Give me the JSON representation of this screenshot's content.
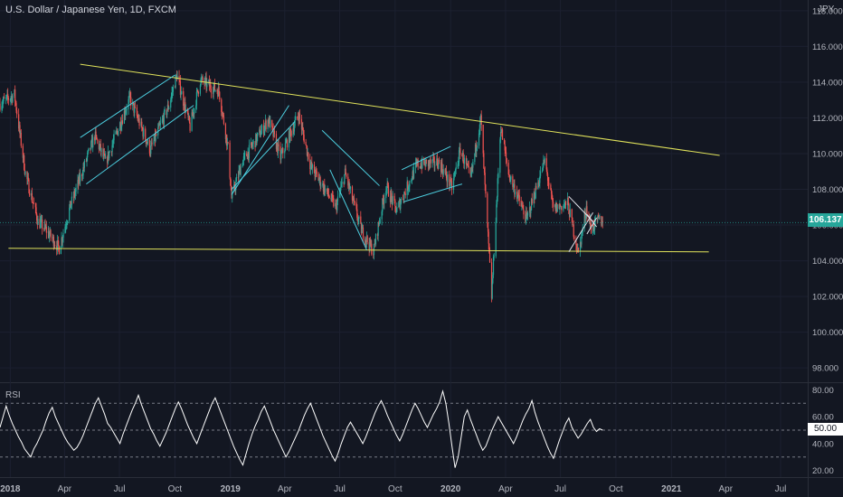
{
  "header": {
    "title": "U.S. Dollar / Japanese Yen, 1D, FXCM",
    "currency": "JPY"
  },
  "colors": {
    "background": "#131722",
    "up": "#26a69a",
    "down": "#ef5350",
    "trend_yellow": "#e1e35b",
    "channel_cyan": "#4dd0e1",
    "rsi_line": "#ffffff",
    "last_price_bg": "#26a69a"
  },
  "last_price": "106.137",
  "rsi": {
    "label": "RSI",
    "value": "50.00"
  },
  "chart_data": [
    {
      "type": "candlestick",
      "title": "U.S. Dollar / Japanese Yen, 1D, FXCM",
      "unit": "JPY",
      "x_tick_labels": [
        "2018",
        "Apr",
        "Jul",
        "Oct",
        "2019",
        "Apr",
        "Jul",
        "Oct",
        "2020",
        "Apr",
        "Jul",
        "Oct",
        "2021",
        "Apr",
        "Jul"
      ],
      "x_range": [
        "2017-12-15",
        "2021-08-15"
      ],
      "y_tick_labels": [
        "98.000",
        "100.000",
        "102.000",
        "104.000",
        "106.000",
        "108.000",
        "110.000",
        "112.000",
        "114.000",
        "116.000",
        "118.000"
      ],
      "ylim": [
        97.2,
        118.6
      ],
      "close_path": [
        [
          "2017-12-15",
          112.8
        ],
        [
          "2018-01-08",
          113.3
        ],
        [
          "2018-01-26",
          108.9
        ],
        [
          "2018-02-16",
          106.2
        ],
        [
          "2018-03-02",
          105.7
        ],
        [
          "2018-03-23",
          104.7
        ],
        [
          "2018-04-10",
          107.0
        ],
        [
          "2018-05-21",
          111.0
        ],
        [
          "2018-06-08",
          109.5
        ],
        [
          "2018-07-18",
          113.1
        ],
        [
          "2018-08-21",
          110.2
        ],
        [
          "2018-09-21",
          112.7
        ],
        [
          "2018-10-04",
          114.4
        ],
        [
          "2018-10-26",
          111.5
        ],
        [
          "2018-11-12",
          114.1
        ],
        [
          "2018-12-13",
          113.5
        ],
        [
          "2018-12-28",
          110.3
        ],
        [
          "2019-01-03",
          107.5
        ],
        [
          "2019-01-20",
          109.5
        ],
        [
          "2019-03-05",
          111.9
        ],
        [
          "2019-03-25",
          109.8
        ],
        [
          "2019-04-24",
          112.2
        ],
        [
          "2019-05-14",
          109.3
        ],
        [
          "2019-06-25",
          107.0
        ],
        [
          "2019-07-10",
          108.9
        ],
        [
          "2019-08-05",
          105.8
        ],
        [
          "2019-08-26",
          104.5
        ],
        [
          "2019-09-16",
          108.2
        ],
        [
          "2019-10-03",
          106.8
        ],
        [
          "2019-11-07",
          109.4
        ],
        [
          "2019-12-13",
          109.5
        ],
        [
          "2020-01-03",
          108.1
        ],
        [
          "2020-01-17",
          110.2
        ],
        [
          "2020-02-03",
          108.6
        ],
        [
          "2020-02-20",
          112.0
        ],
        [
          "2020-03-09",
          102.0
        ],
        [
          "2020-03-24",
          111.5
        ],
        [
          "2020-04-06",
          108.9
        ],
        [
          "2020-05-06",
          106.3
        ],
        [
          "2020-06-05",
          109.6
        ],
        [
          "2020-06-19",
          106.9
        ],
        [
          "2020-07-13",
          107.2
        ],
        [
          "2020-07-31",
          104.4
        ],
        [
          "2020-08-13",
          107.0
        ],
        [
          "2020-08-21",
          105.8
        ],
        [
          "2020-09-03",
          106.3
        ],
        [
          "2020-09-09",
          106.137
        ]
      ],
      "drawings": {
        "descending_resistance": [
          [
            "2018-04-27",
            115.0
          ],
          [
            "2021-03-22",
            109.9
          ]
        ],
        "horizontal_support": [
          [
            "2017-12-29",
            104.7
          ],
          [
            "2021-03-04",
            104.5
          ]
        ],
        "cyan_channels": [
          [
            [
              "2018-04-27",
              110.9
            ],
            [
              "2018-10-01",
              114.4
            ]
          ],
          [
            [
              "2018-05-07",
              108.3
            ],
            [
              "2018-11-01",
              112.7
            ]
          ],
          [
            [
              "2019-01-03",
              107.7
            ],
            [
              "2019-04-08",
              112.7
            ]
          ],
          [
            [
              "2019-01-03",
              108.0
            ],
            [
              "2019-04-18",
              111.8
            ]
          ],
          [
            [
              "2019-06-02",
              111.3
            ],
            [
              "2019-09-05",
              108.2
            ]
          ],
          [
            [
              "2019-06-15",
              109.1
            ],
            [
              "2019-08-15",
              104.6
            ]
          ],
          [
            [
              "2019-10-12",
              109.1
            ],
            [
              "2020-01-01",
              110.4
            ]
          ],
          [
            [
              "2019-10-15",
              107.3
            ],
            [
              "2020-01-20",
              108.3
            ]
          ]
        ],
        "white_triangle": [
          [
            [
              "2020-07-15",
              107.6
            ],
            [
              "2020-08-24",
              106.2
            ]
          ],
          [
            [
              "2020-07-15",
              104.5
            ],
            [
              "2020-08-24",
              106.7
            ]
          ],
          [
            [
              "2020-08-14",
              106.6
            ],
            [
              "2020-08-30",
              105.9
            ]
          ],
          [
            [
              "2020-08-14",
              105.5
            ],
            [
              "2020-08-30",
              106.4
            ]
          ]
        ]
      },
      "last_value": 106.137
    },
    {
      "type": "line",
      "title": "RSI",
      "y_tick_labels": [
        "20.00",
        "40.00",
        "60.00",
        "80.00"
      ],
      "ylim": [
        15,
        85
      ],
      "reference_lines": [
        30,
        50,
        70
      ],
      "current_value": 50.0,
      "values": [
        52,
        60,
        68,
        61,
        55,
        50,
        45,
        41,
        36,
        33,
        30,
        36,
        40,
        45,
        50,
        57,
        63,
        67,
        60,
        55,
        50,
        45,
        41,
        38,
        35,
        37,
        41,
        46,
        52,
        58,
        64,
        70,
        74,
        68,
        62,
        55,
        52,
        48,
        44,
        40,
        47,
        53,
        59,
        65,
        70,
        76,
        69,
        63,
        57,
        51,
        47,
        42,
        38,
        43,
        48,
        54,
        60,
        66,
        71,
        66,
        60,
        54,
        49,
        44,
        40,
        46,
        52,
        58,
        64,
        70,
        74,
        68,
        62,
        56,
        50,
        44,
        38,
        33,
        28,
        24,
        32,
        40,
        47,
        53,
        58,
        64,
        68,
        62,
        56,
        50,
        45,
        40,
        35,
        30,
        34,
        39,
        44,
        49,
        55,
        61,
        66,
        70,
        64,
        58,
        52,
        46,
        41,
        36,
        31,
        27,
        33,
        40,
        46,
        52,
        56,
        52,
        48,
        44,
        40,
        45,
        51,
        57,
        63,
        68,
        72,
        67,
        61,
        56,
        51,
        46,
        42,
        47,
        53,
        59,
        65,
        70,
        66,
        61,
        56,
        52,
        57,
        62,
        66,
        71,
        79,
        70,
        55,
        38,
        22,
        30,
        45,
        60,
        65,
        58,
        52,
        46,
        40,
        35,
        38,
        44,
        50,
        55,
        60,
        56,
        52,
        48,
        44,
        40,
        45,
        51,
        57,
        62,
        66,
        72,
        63,
        56,
        50,
        44,
        38,
        33,
        29,
        36,
        43,
        49,
        55,
        59,
        52,
        48,
        44,
        47,
        51,
        55,
        58,
        52,
        49,
        51,
        50
      ]
    }
  ]
}
